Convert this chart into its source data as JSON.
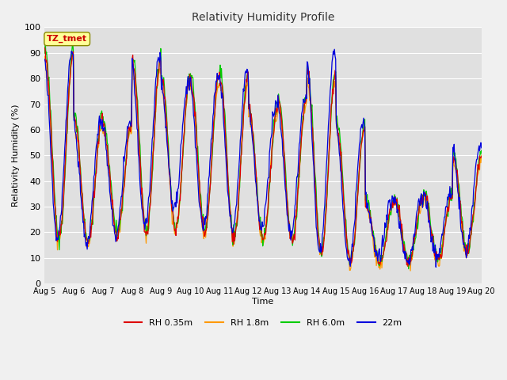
{
  "title": "Relativity Humidity Profile",
  "xlabel": "Time",
  "ylabel": "Relativity Humidity (%)",
  "annotation": "TZ_tmet",
  "ylim": [
    0,
    100
  ],
  "colors": {
    "RH 0.35m": "#dd0000",
    "RH 1.8m": "#ff9900",
    "RH 6.0m": "#00cc00",
    "22m": "#0000dd"
  },
  "series_labels": [
    "RH 0.35m",
    "RH 1.8m",
    "RH 6.0m",
    "22m"
  ],
  "xtick_labels": [
    "Aug 5",
    "Aug 6",
    "Aug 7",
    "Aug 8",
    "Aug 9",
    "Aug 10",
    "Aug 11",
    "Aug 12",
    "Aug 13",
    "Aug 14",
    "Aug 15",
    "Aug 16",
    "Aug 17",
    "Aug 18",
    "Aug 19",
    "Aug 20"
  ],
  "fig_bg_color": "#f0f0f0",
  "plot_bg_color": "#e0e0e0",
  "grid_color": "#ffffff",
  "annotation_box_color": "#ffff99",
  "annotation_text_color": "#cc0000",
  "annotation_edge_color": "#888800"
}
